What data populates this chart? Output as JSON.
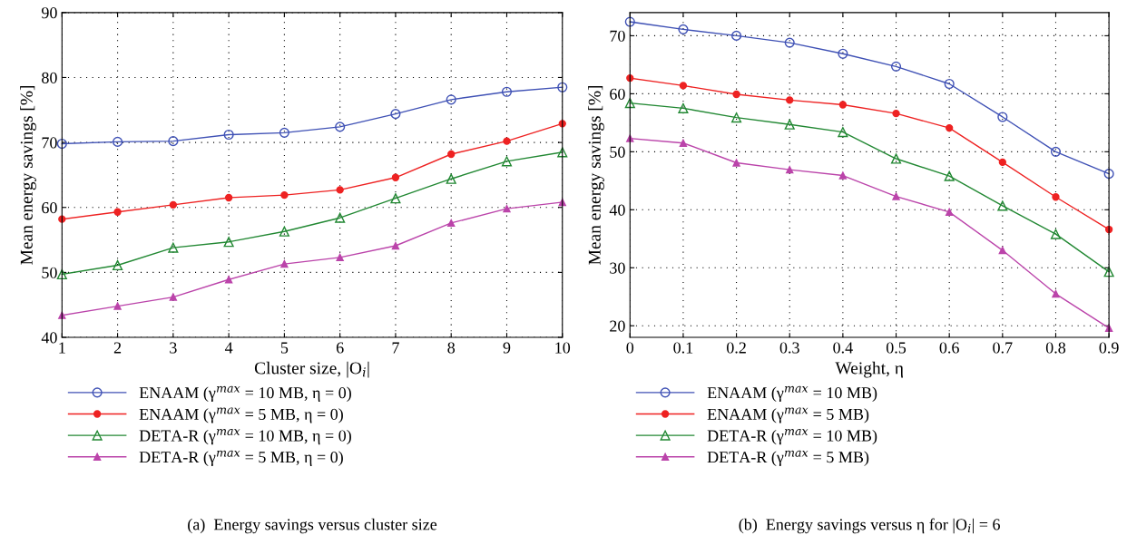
{
  "chart_data": [
    {
      "type": "line",
      "xlabel": "Cluster size, |O$_{i}$|",
      "ylabel": "Mean energy savings [%]",
      "x": [
        1,
        2,
        3,
        4,
        5,
        6,
        7,
        8,
        9,
        10
      ],
      "xlim": [
        1,
        10
      ],
      "xticks": [
        1,
        2,
        3,
        4,
        5,
        6,
        7,
        8,
        9,
        10
      ],
      "ylim": [
        40,
        90
      ],
      "yticks": [
        40,
        50,
        60,
        70,
        80,
        90
      ],
      "grid": true,
      "legend": "bottom",
      "line_style": "solid",
      "annotations": [
        "(a)  Energy savings versus cluster size"
      ],
      "series": [
        {
          "name": "ENAAM (γ$^{max}$ = 10 MB, η = 0)",
          "color": "#3f51b5",
          "marker": "circle",
          "values": [
            69.8,
            70.1,
            70.2,
            71.2,
            71.5,
            72.4,
            74.4,
            76.6,
            77.8,
            78.5
          ]
        },
        {
          "name": "ENAAM (γ$^{max}$ = 5 MB, η = 0)",
          "color": "#ee2222",
          "marker": "circle_filled",
          "values": [
            58.2,
            59.3,
            60.4,
            61.5,
            61.9,
            62.7,
            64.6,
            68.2,
            70.2,
            72.9
          ]
        },
        {
          "name": "DETA-R (γ$^{max}$ = 10 MB, η = 0)",
          "color": "#228833",
          "marker": "triangle",
          "values": [
            49.7,
            51.1,
            53.8,
            54.7,
            56.3,
            58.4,
            61.4,
            64.4,
            67.1,
            68.5
          ]
        },
        {
          "name": "DETA-R (γ$^{max}$ = 5 MB, η = 0)",
          "color": "#bb44aa",
          "marker": "triangle_filled",
          "values": [
            43.4,
            44.8,
            46.2,
            48.9,
            51.3,
            52.3,
            54.1,
            57.6,
            59.8,
            60.8
          ]
        }
      ]
    },
    {
      "type": "line",
      "xlabel": "Weight, η",
      "ylabel": "Mean energy savings [%]",
      "x": [
        0,
        0.1,
        0.2,
        0.3,
        0.4,
        0.5,
        0.6,
        0.7,
        0.8,
        0.9
      ],
      "xlim": [
        0,
        0.9
      ],
      "xticks": [
        0,
        0.1,
        0.2,
        0.3,
        0.4,
        0.5,
        0.6,
        0.7,
        0.8,
        0.9
      ],
      "ylim": [
        18,
        74
      ],
      "yticks": [
        20,
        30,
        40,
        50,
        60,
        70
      ],
      "grid": true,
      "legend": "bottom",
      "line_style": "solid",
      "annotations": [
        "(b)  Energy savings versus η for |O$_{i}$| = 6"
      ],
      "series": [
        {
          "name": "ENAAM (γ$^{max}$ = 10 MB)",
          "color": "#3f51b5",
          "marker": "circle",
          "values": [
            72.4,
            71.1,
            70.0,
            68.8,
            66.9,
            64.7,
            61.7,
            56.0,
            50.0,
            46.2
          ]
        },
        {
          "name": "ENAAM (γ$^{max}$ = 5 MB)",
          "color": "#ee2222",
          "marker": "circle_filled",
          "values": [
            62.7,
            61.4,
            59.9,
            58.9,
            58.1,
            56.6,
            54.1,
            48.2,
            42.2,
            36.6
          ]
        },
        {
          "name": "DETA-R (γ$^{max}$ = 10 MB)",
          "color": "#228833",
          "marker": "triangle",
          "values": [
            58.4,
            57.5,
            55.9,
            54.7,
            53.4,
            48.8,
            45.8,
            40.7,
            35.8,
            29.3
          ]
        },
        {
          "name": "DETA-R (γ$^{max}$ = 5 MB)",
          "color": "#bb44aa",
          "marker": "triangle_filled",
          "values": [
            52.3,
            51.5,
            48.1,
            46.9,
            45.9,
            42.3,
            39.6,
            33.0,
            25.5,
            19.6
          ]
        }
      ]
    }
  ]
}
